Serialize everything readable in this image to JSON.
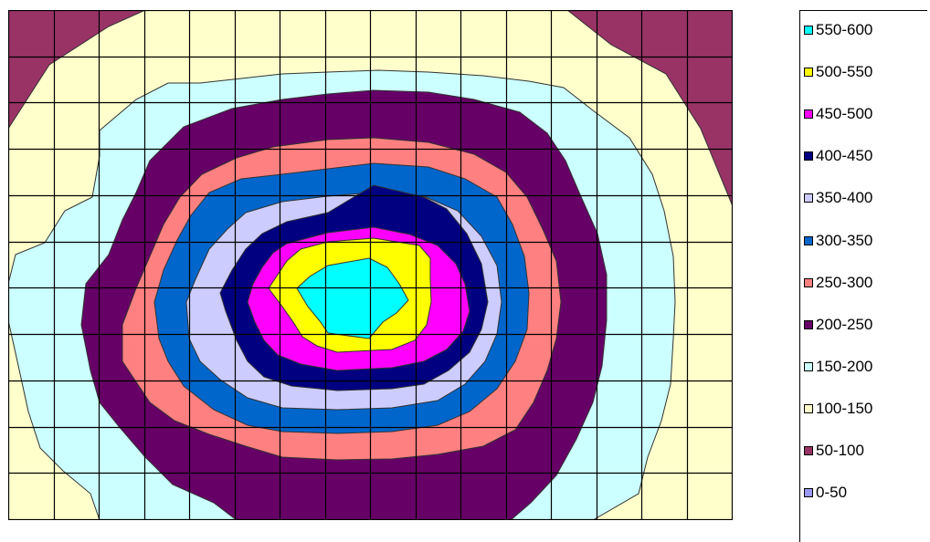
{
  "chart_data": {
    "type": "contour",
    "title": "",
    "xlabel": "",
    "ylabel": "",
    "grid": true,
    "grid_cols": 16,
    "grid_rows": 11,
    "legend_position": "right",
    "levels": [
      {
        "label": "0-50",
        "range": [
          0,
          50
        ],
        "color": "#9999FF"
      },
      {
        "label": "50-100",
        "range": [
          50,
          100
        ],
        "color": "#993366"
      },
      {
        "label": "100-150",
        "range": [
          100,
          150
        ],
        "color": "#FFFFCC"
      },
      {
        "label": "150-200",
        "range": [
          150,
          200
        ],
        "color": "#CCFFFF"
      },
      {
        "label": "200-250",
        "range": [
          200,
          250
        ],
        "color": "#660066"
      },
      {
        "label": "250-300",
        "range": [
          250,
          300
        ],
        "color": "#FF8080"
      },
      {
        "label": "300-350",
        "range": [
          300,
          350
        ],
        "color": "#0066CC"
      },
      {
        "label": "350-400",
        "range": [
          350,
          400
        ],
        "color": "#CCCCFF"
      },
      {
        "label": "400-450",
        "range": [
          400,
          450
        ],
        "color": "#000080"
      },
      {
        "label": "450-500",
        "range": [
          450,
          500
        ],
        "color": "#FF00FF"
      },
      {
        "label": "500-550",
        "range": [
          500,
          550
        ],
        "color": "#FFFF00"
      },
      {
        "label": "550-600",
        "range": [
          550,
          600
        ],
        "color": "#00FFFF"
      }
    ],
    "legend_order": [
      "550-600",
      "500-550",
      "450-500",
      "400-450",
      "350-400",
      "300-350",
      "250-300",
      "200-250",
      "150-200",
      "100-150",
      "50-100",
      "0-50"
    ]
  }
}
